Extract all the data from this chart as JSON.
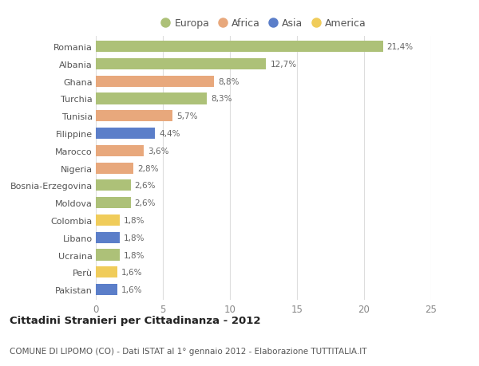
{
  "countries": [
    "Romania",
    "Albania",
    "Ghana",
    "Turchia",
    "Tunisia",
    "Filippine",
    "Marocco",
    "Nigeria",
    "Bosnia-Erzegovina",
    "Moldova",
    "Colombia",
    "Libano",
    "Ucraina",
    "Perù",
    "Pakistan"
  ],
  "values": [
    21.4,
    12.7,
    8.8,
    8.3,
    5.7,
    4.4,
    3.6,
    2.8,
    2.6,
    2.6,
    1.8,
    1.8,
    1.8,
    1.6,
    1.6
  ],
  "labels": [
    "21,4%",
    "12,7%",
    "8,8%",
    "8,3%",
    "5,7%",
    "4,4%",
    "3,6%",
    "2,8%",
    "2,6%",
    "2,6%",
    "1,8%",
    "1,8%",
    "1,8%",
    "1,6%",
    "1,6%"
  ],
  "continents": [
    "Europa",
    "Europa",
    "Africa",
    "Europa",
    "Africa",
    "Asia",
    "Africa",
    "Africa",
    "Europa",
    "Europa",
    "America",
    "Asia",
    "Europa",
    "America",
    "Asia"
  ],
  "colors": {
    "Europa": "#adc178",
    "Africa": "#e8a87c",
    "Asia": "#5b7ec9",
    "America": "#f0cc5a"
  },
  "title": "Cittadini Stranieri per Cittadinanza - 2012",
  "subtitle": "COMUNE DI LIPOMO (CO) - Dati ISTAT al 1° gennaio 2012 - Elaborazione TUTTITALIA.IT",
  "xlim": [
    0,
    25
  ],
  "xticks": [
    0,
    5,
    10,
    15,
    20,
    25
  ],
  "background_color": "#ffffff",
  "grid_color": "#dddddd",
  "bar_height": 0.65,
  "legend_order": [
    "Europa",
    "Africa",
    "Asia",
    "America"
  ]
}
